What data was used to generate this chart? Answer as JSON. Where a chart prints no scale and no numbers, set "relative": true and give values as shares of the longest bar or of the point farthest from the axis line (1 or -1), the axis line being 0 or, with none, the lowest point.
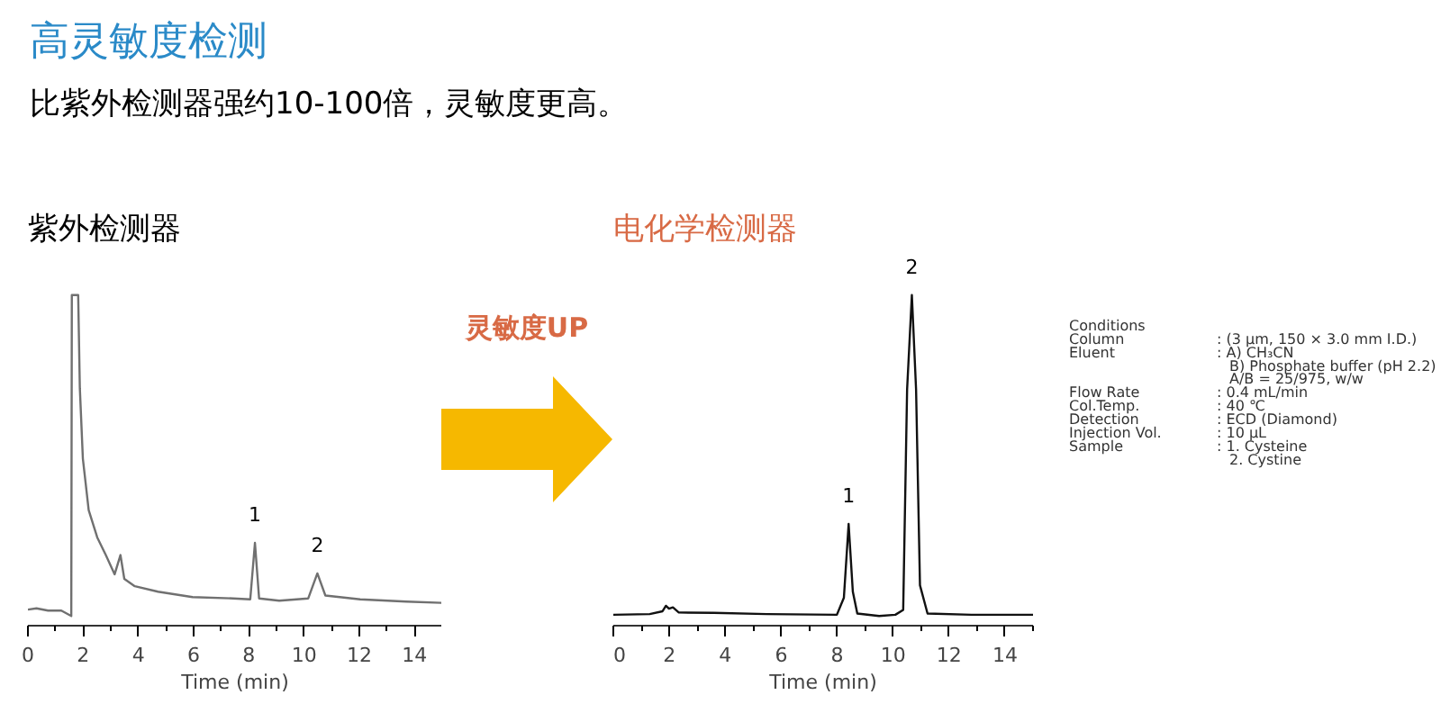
{
  "chart_data": [
    {
      "type": "other",
      "title": "高灵敏度检测",
      "subtitle": "比紫外检测器强约10-100倍，灵敏度更高。",
      "annotations": [
        "灵敏度UP"
      ]
    },
    {
      "type": "line",
      "title": "紫外检测器",
      "xlabel": "Time (min)",
      "relative": true,
      "xlim": [
        0,
        15
      ],
      "xticks": [
        0,
        2,
        4,
        6,
        8,
        10,
        12,
        14
      ],
      "x": [
        0,
        0.31,
        0.73,
        1.21,
        1.57,
        1.59,
        1.82,
        1.88,
        1.99,
        2.2,
        2.51,
        2.82,
        3.14,
        3.35,
        3.49,
        3.87,
        4.71,
        5.96,
        7.43,
        8.05,
        8.22,
        8.37,
        9.1,
        10.15,
        10.48,
        10.77,
        12.03,
        13.7,
        15
      ],
      "series": [
        {
          "color": "#707070",
          "values": [
            0.02,
            0.024,
            0.017,
            0.017,
            0.0,
            1.0,
            1.0,
            0.71,
            0.49,
            0.33,
            0.245,
            0.19,
            0.13,
            0.19,
            0.116,
            0.093,
            0.076,
            0.059,
            0.055,
            0.052,
            0.228,
            0.055,
            0.048,
            0.055,
            0.133,
            0.064,
            0.052,
            0.045,
            0.041
          ]
        }
      ],
      "annotations": [
        {
          "text": "1",
          "x": 8.22,
          "y": 0.228
        },
        {
          "text": "2",
          "x": 10.48,
          "y": 0.133
        }
      ]
    },
    {
      "type": "line",
      "title": "电化学检测器",
      "xlabel": "Time (min)",
      "relative": true,
      "xlim": [
        0,
        15
      ],
      "xticks": [
        0,
        2,
        4,
        6,
        8,
        10,
        12,
        14
      ],
      "x": [
        0,
        1.3,
        1.76,
        1.88,
        1.99,
        2.13,
        2.34,
        3.6,
        5.48,
        7.99,
        8.24,
        8.41,
        8.56,
        8.72,
        9.5,
        10.08,
        10.36,
        10.5,
        10.67,
        10.82,
        10.96,
        11.23,
        12.8,
        15
      ],
      "series": [
        {
          "color": "#111111",
          "values": [
            0.004,
            0.006,
            0.015,
            0.032,
            0.023,
            0.027,
            0.011,
            0.01,
            0.006,
            0.004,
            0.057,
            0.287,
            0.076,
            0.008,
            0.0,
            0.004,
            0.019,
            0.707,
            1.0,
            0.707,
            0.096,
            0.008,
            0.004,
            0.004
          ]
        }
      ],
      "annotations": [
        {
          "text": "1",
          "x": 8.41,
          "y": 0.287
        },
        {
          "text": "2",
          "x": 10.67,
          "y": 1.0
        }
      ]
    },
    {
      "type": "other",
      "title": "Conditions",
      "categories": [
        "Column",
        "Eluent",
        null,
        null,
        "Flow Rate",
        "Col.Temp.",
        "Detection",
        "Injection Vol.",
        "Sample",
        null
      ],
      "value_labels": [
        ": (3 µm, 150 × 3.0 mm I.D.)",
        ": A) CH₃CN",
        "B) Phosphate buffer (pH 2.2)",
        "A/B = 25/975, w/w",
        ": 0.4 mL/min",
        ": 40 ℃",
        ": ECD (Diamond)",
        ": 10 µL",
        ": 1. Cysteine",
        "2. Cystine"
      ]
    }
  ]
}
